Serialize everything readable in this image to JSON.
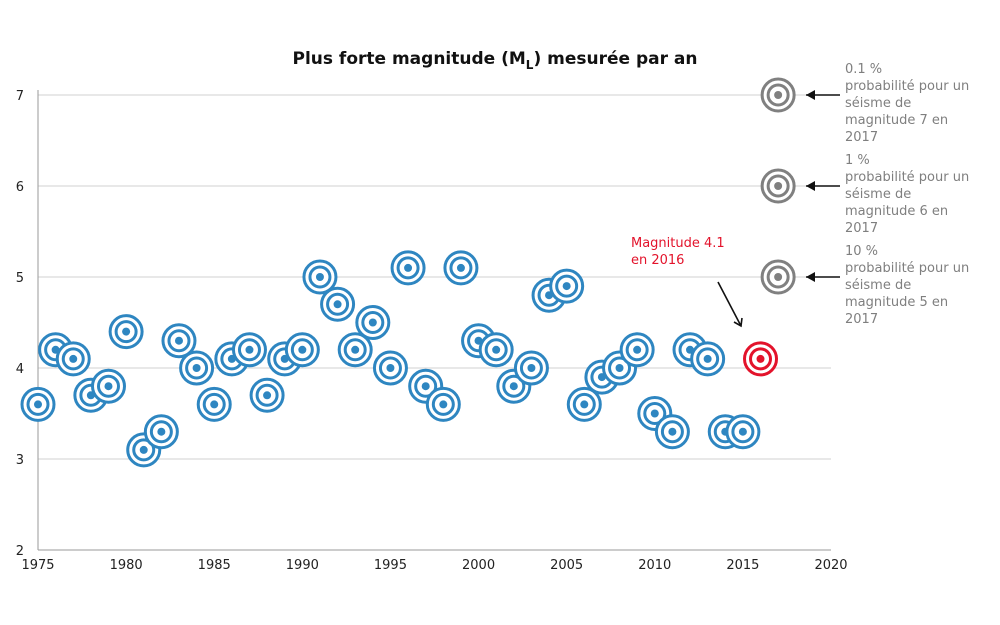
{
  "chart_data": {
    "type": "scatter",
    "title": "Plus forte magnitude (M",
    "title_sub": "L",
    "title_suffix": ") mesurée par an",
    "xlabel": "",
    "ylabel": "",
    "xlim": [
      1975,
      2020
    ],
    "ylim": [
      2,
      7
    ],
    "x_ticks": [
      1975,
      1980,
      1985,
      1990,
      1995,
      2000,
      2005,
      2010,
      2015,
      2020
    ],
    "y_ticks": [
      2,
      3,
      4,
      5,
      6,
      7
    ],
    "grid": "horizontal",
    "colors": {
      "points": "#2e86c1",
      "highlight": "#e3132b",
      "probability": "#808080"
    },
    "points": [
      {
        "x": 1975,
        "y": 3.6
      },
      {
        "x": 1976,
        "y": 4.2
      },
      {
        "x": 1977,
        "y": 4.1
      },
      {
        "x": 1978,
        "y": 3.7
      },
      {
        "x": 1979,
        "y": 3.8
      },
      {
        "x": 1980,
        "y": 4.4
      },
      {
        "x": 1981,
        "y": 3.1
      },
      {
        "x": 1982,
        "y": 3.3
      },
      {
        "x": 1983,
        "y": 4.3
      },
      {
        "x": 1984,
        "y": 4.0
      },
      {
        "x": 1985,
        "y": 3.6
      },
      {
        "x": 1986,
        "y": 4.1
      },
      {
        "x": 1987,
        "y": 4.2
      },
      {
        "x": 1988,
        "y": 3.7
      },
      {
        "x": 1989,
        "y": 4.1
      },
      {
        "x": 1990,
        "y": 4.2
      },
      {
        "x": 1991,
        "y": 5.0
      },
      {
        "x": 1992,
        "y": 4.7
      },
      {
        "x": 1993,
        "y": 4.2
      },
      {
        "x": 1994,
        "y": 4.5
      },
      {
        "x": 1995,
        "y": 4.0
      },
      {
        "x": 1996,
        "y": 5.1
      },
      {
        "x": 1997,
        "y": 3.8
      },
      {
        "x": 1998,
        "y": 3.6
      },
      {
        "x": 1999,
        "y": 5.1
      },
      {
        "x": 2000,
        "y": 4.3
      },
      {
        "x": 2001,
        "y": 4.2
      },
      {
        "x": 2002,
        "y": 3.8
      },
      {
        "x": 2003,
        "y": 4.0
      },
      {
        "x": 2004,
        "y": 4.8
      },
      {
        "x": 2005,
        "y": 4.9
      },
      {
        "x": 2006,
        "y": 3.6
      },
      {
        "x": 2007,
        "y": 3.9
      },
      {
        "x": 2008,
        "y": 4.0
      },
      {
        "x": 2009,
        "y": 4.2
      },
      {
        "x": 2010,
        "y": 3.5
      },
      {
        "x": 2011,
        "y": 3.3
      },
      {
        "x": 2012,
        "y": 4.2
      },
      {
        "x": 2013,
        "y": 4.1
      },
      {
        "x": 2014,
        "y": 3.3
      },
      {
        "x": 2015,
        "y": 3.3
      }
    ],
    "highlight": {
      "x": 2016,
      "y": 4.1,
      "label_line1": "Magnitude 4.1",
      "label_line2": "en 2016"
    },
    "probabilities": [
      {
        "x": 2017,
        "y": 7,
        "lines": [
          "0.1 %",
          "probabilité pour un",
          "séisme de",
          "magnitude 7 en",
          "2017"
        ]
      },
      {
        "x": 2017,
        "y": 6,
        "lines": [
          "1 %",
          "probabilité pour un",
          "séisme de",
          "magnitude 6 en",
          "2017"
        ]
      },
      {
        "x": 2017,
        "y": 5,
        "lines": [
          "10 %",
          "probabilité pour un",
          "séisme de",
          "magnitude 5 en",
          "2017"
        ]
      }
    ]
  }
}
